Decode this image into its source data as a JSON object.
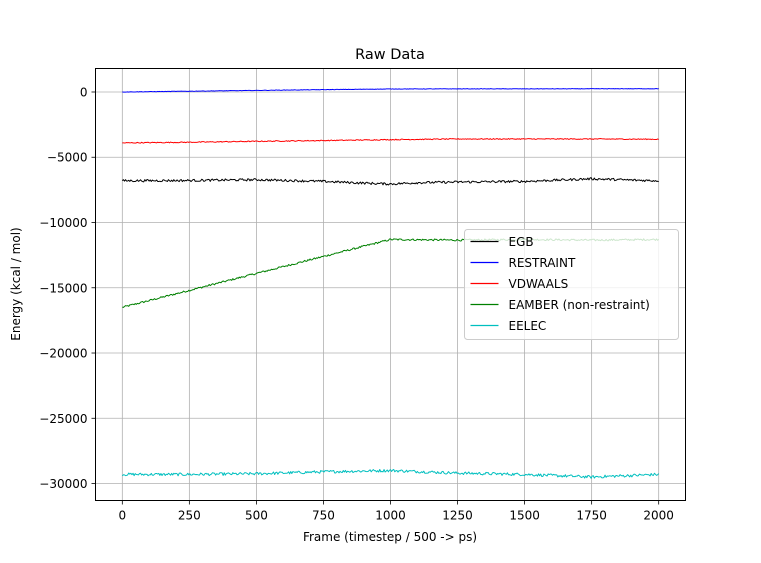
{
  "chart_data": {
    "type": "line",
    "title": "Raw Data",
    "xlabel": "Frame (timestep / 500 -> ps)",
    "ylabel": "Energy (kcal / mol)",
    "xlim": [
      -100,
      2100
    ],
    "ylim": [
      -31300,
      1800
    ],
    "xticks": [
      0,
      250,
      500,
      750,
      1000,
      1250,
      1500,
      1750,
      2000
    ],
    "yticks": [
      0,
      -5000,
      -10000,
      -15000,
      -20000,
      -25000,
      -30000
    ],
    "xtick_labels": [
      "0",
      "250",
      "500",
      "750",
      "1000",
      "1250",
      "1500",
      "1750",
      "2000"
    ],
    "ytick_labels": [
      "0",
      "−5000",
      "−10000",
      "−15000",
      "−20000",
      "−25000",
      "−30000"
    ],
    "grid": true,
    "legend_position": "center-right",
    "series": [
      {
        "name": "EGB",
        "color": "#000000",
        "x": [
          0,
          250,
          500,
          750,
          900,
          1000,
          1100,
          1250,
          1500,
          1750,
          1900,
          2000
        ],
        "y": [
          -6800,
          -6780,
          -6720,
          -6850,
          -6980,
          -7050,
          -6950,
          -6900,
          -6850,
          -6650,
          -6750,
          -6800
        ]
      },
      {
        "name": "RESTRAINT",
        "color": "#0000ff",
        "x": [
          0,
          250,
          500,
          750,
          1000,
          1250,
          1500,
          1750,
          2000
        ],
        "y": [
          0,
          60,
          120,
          180,
          230,
          240,
          240,
          245,
          250
        ]
      },
      {
        "name": "VDWAALS",
        "color": "#ff0000",
        "x": [
          0,
          250,
          500,
          750,
          1000,
          1250,
          1500,
          1750,
          2000
        ],
        "y": [
          -3900,
          -3850,
          -3780,
          -3720,
          -3650,
          -3600,
          -3600,
          -3600,
          -3620
        ]
      },
      {
        "name": "EAMBER (non-restraint)",
        "color": "#008000",
        "x": [
          0,
          250,
          500,
          750,
          1000,
          1250,
          1500,
          1750,
          2000
        ],
        "y": [
          -16500,
          -15200,
          -13900,
          -12600,
          -11300,
          -11350,
          -11300,
          -11350,
          -11300
        ]
      },
      {
        "name": "EELEC",
        "color": "#00bfbf",
        "x": [
          0,
          250,
          500,
          750,
          1000,
          1250,
          1500,
          1750,
          2000
        ],
        "y": [
          -29300,
          -29300,
          -29250,
          -29100,
          -29000,
          -29200,
          -29300,
          -29500,
          -29300
        ]
      }
    ]
  }
}
